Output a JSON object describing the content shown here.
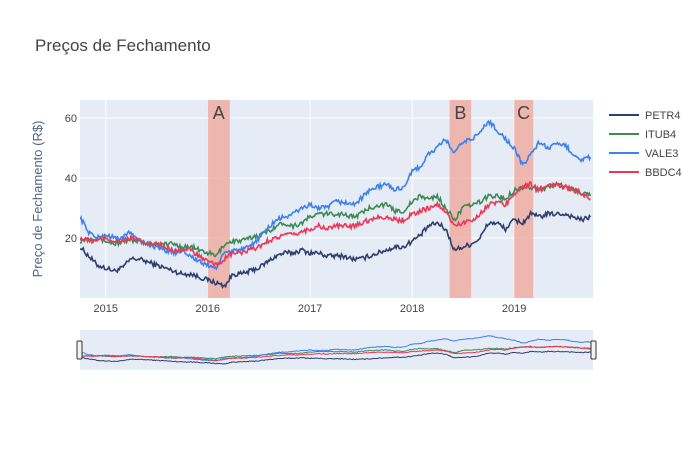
{
  "chart_data": {
    "type": "line",
    "title": "Preços de Fechamento",
    "xlabel": "",
    "ylabel": "Preço de Fechamento (R$)",
    "x_ticks": [
      "2015",
      "2016",
      "2017",
      "2018",
      "2019"
    ],
    "y_ticks": [
      20,
      40,
      60
    ],
    "xlim": [
      "2014-10-01",
      "2019-10-10"
    ],
    "ylim": [
      0,
      66
    ],
    "grid": true,
    "legend": "right",
    "rangeslider": true,
    "annotations": [
      {
        "label": "A",
        "start": "2016-01-01",
        "end": "2016-03-20"
      },
      {
        "label": "B",
        "start": "2018-05-15",
        "end": "2018-07-31"
      },
      {
        "label": "C",
        "start": "2019-01-01",
        "end": "2019-03-10"
      }
    ],
    "dates": [
      "2014-10-01",
      "2014-11-01",
      "2014-12-01",
      "2015-01-01",
      "2015-02-01",
      "2015-03-01",
      "2015-04-01",
      "2015-05-01",
      "2015-06-01",
      "2015-07-01",
      "2015-08-01",
      "2015-09-01",
      "2015-10-01",
      "2015-11-01",
      "2015-12-01",
      "2016-01-01",
      "2016-02-01",
      "2016-03-01",
      "2016-04-01",
      "2016-05-01",
      "2016-06-01",
      "2016-07-01",
      "2016-08-01",
      "2016-09-01",
      "2016-10-01",
      "2016-11-01",
      "2016-12-01",
      "2017-01-01",
      "2017-02-01",
      "2017-03-01",
      "2017-04-01",
      "2017-05-01",
      "2017-06-01",
      "2017-07-01",
      "2017-08-01",
      "2017-09-01",
      "2017-10-01",
      "2017-11-01",
      "2017-12-01",
      "2018-01-01",
      "2018-02-01",
      "2018-03-01",
      "2018-04-01",
      "2018-05-01",
      "2018-06-01",
      "2018-07-01",
      "2018-08-01",
      "2018-09-01",
      "2018-10-01",
      "2018-11-01",
      "2018-12-01",
      "2019-01-01",
      "2019-02-01",
      "2019-03-01",
      "2019-04-01",
      "2019-05-01",
      "2019-06-01",
      "2019-07-01",
      "2019-08-01",
      "2019-09-01",
      "2019-10-01"
    ],
    "series": [
      {
        "name": "PETR4",
        "color": "#2f3e6f",
        "values": [
          17,
          14,
          11,
          10,
          9,
          10,
          13,
          13,
          12,
          11,
          10,
          9,
          8,
          8,
          7,
          6,
          5,
          4,
          8,
          8,
          9,
          10,
          12,
          14,
          15,
          15,
          16,
          15,
          15,
          14,
          14,
          14,
          13,
          13,
          14,
          15,
          16,
          17,
          17,
          19,
          21,
          24,
          25,
          23,
          16,
          17,
          18,
          20,
          25,
          25,
          23,
          26,
          25,
          28,
          27,
          28,
          28,
          28,
          27,
          26,
          27
        ]
      },
      {
        "name": "ITUB4",
        "color": "#3d8a55",
        "values": [
          19,
          20,
          20,
          19,
          18,
          19,
          19,
          19,
          18,
          18,
          18,
          18,
          17,
          17,
          16,
          15,
          14,
          18,
          19,
          19,
          20,
          21,
          22,
          24,
          25,
          24,
          25,
          27,
          28,
          28,
          28,
          28,
          27,
          28,
          30,
          31,
          31,
          29,
          29,
          32,
          34,
          33,
          34,
          30,
          26,
          30,
          31,
          32,
          34,
          34,
          33,
          36,
          37,
          37,
          36,
          37,
          38,
          37,
          36,
          35,
          34
        ]
      },
      {
        "name": "VALE3",
        "color": "#3d81ee",
        "values": [
          27,
          22,
          20,
          21,
          20,
          20,
          22,
          19,
          18,
          17,
          16,
          15,
          16,
          14,
          12,
          11,
          10,
          15,
          16,
          16,
          17,
          20,
          23,
          26,
          27,
          28,
          30,
          31,
          30,
          30,
          32,
          32,
          31,
          33,
          36,
          37,
          38,
          36,
          37,
          42,
          44,
          48,
          50,
          53,
          48,
          52,
          53,
          55,
          59,
          56,
          53,
          50,
          44,
          48,
          52,
          50,
          51,
          51,
          48,
          46,
          47
        ]
      },
      {
        "name": "BBDC4",
        "color": "#ec3757",
        "values": [
          20,
          19,
          19,
          20,
          19,
          19,
          20,
          19,
          18,
          18,
          17,
          16,
          16,
          16,
          14,
          12,
          11,
          13,
          15,
          15,
          16,
          17,
          19,
          20,
          21,
          21,
          22,
          23,
          24,
          23,
          24,
          24,
          24,
          25,
          26,
          27,
          27,
          26,
          26,
          28,
          29,
          30,
          31,
          29,
          24,
          25,
          26,
          28,
          31,
          32,
          31,
          35,
          37,
          38,
          36,
          37,
          38,
          37,
          36,
          35,
          33
        ]
      }
    ]
  }
}
